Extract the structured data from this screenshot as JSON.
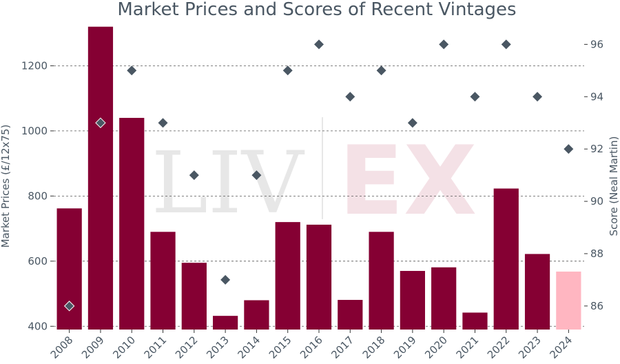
{
  "chart_data": {
    "type": "bar",
    "title": "Market Prices and Scores of Recent Vintages",
    "ylabel": "Market Prices (£/12x75)",
    "y2label": "Score (Neal Martin)",
    "categories": [
      "2008",
      "2009",
      "2010",
      "2011",
      "2012",
      "2013",
      "2014",
      "2015",
      "2016",
      "2017",
      "2018",
      "2019",
      "2020",
      "2021",
      "2022",
      "2023",
      "2024"
    ],
    "series": [
      {
        "values": [
          762,
          1320,
          1040,
          690,
          595,
          432,
          480,
          720,
          712,
          481,
          690,
          570,
          581,
          442,
          823,
          622,
          568
        ],
        "color": "#850033",
        "highlight_color": "#ffb6c1",
        "highlight_index": 16
      },
      {
        "axis": "right",
        "marker": "diamond",
        "values": [
          86,
          93,
          95,
          93,
          91,
          87,
          91,
          95,
          96,
          94,
          95,
          93,
          96,
          94,
          96,
          94,
          92
        ],
        "color": "#4a5763",
        "highlight_indices": [
          0,
          1
        ]
      }
    ],
    "ylim": [
      390,
      1330
    ],
    "y2lim": [
      85.1,
      96.8
    ],
    "yticks": [
      400,
      600,
      800,
      1000,
      1200
    ],
    "y2ticks": [
      86,
      88,
      90,
      92,
      94,
      96
    ],
    "grid": "horizontal",
    "watermark": {
      "text_left": "LIV",
      "text_right": "EX",
      "color_left": "#e7e7e7",
      "color_right": "#f4e1e6"
    }
  }
}
